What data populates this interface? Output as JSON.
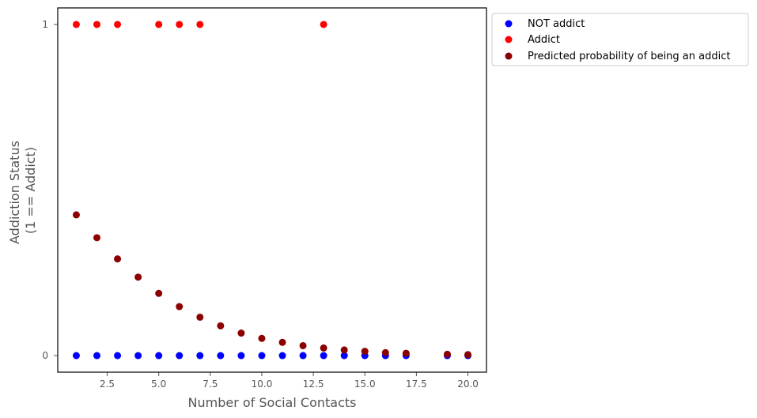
{
  "chart_data": {
    "type": "scatter",
    "xlabel": "Number of Social Contacts",
    "ylabel_lines": [
      "Addiction Status",
      "(1 == Addict)"
    ],
    "xlim": [
      0.1,
      20.9
    ],
    "ylim": [
      -0.05,
      1.05
    ],
    "x_ticks": [
      2.5,
      5.0,
      7.5,
      10.0,
      12.5,
      15.0,
      17.5,
      20.0
    ],
    "x_tick_labels": [
      "2.5",
      "5.0",
      "7.5",
      "10.0",
      "12.5",
      "15.0",
      "17.5",
      "20.0"
    ],
    "y_ticks": [
      0,
      1
    ],
    "y_tick_labels": [
      "0",
      "1"
    ],
    "grid": false,
    "legend_position": "outside-top-right",
    "series": [
      {
        "name": "NOT addict",
        "color": "#0000ff",
        "points": [
          [
            1,
            0
          ],
          [
            2,
            0
          ],
          [
            3,
            0
          ],
          [
            4,
            0
          ],
          [
            5,
            0
          ],
          [
            6,
            0
          ],
          [
            7,
            0
          ],
          [
            8,
            0
          ],
          [
            9,
            0
          ],
          [
            10,
            0
          ],
          [
            11,
            0
          ],
          [
            12,
            0
          ],
          [
            13,
            0
          ],
          [
            14,
            0
          ],
          [
            15,
            0
          ],
          [
            16,
            0
          ],
          [
            17,
            0
          ],
          [
            19,
            0
          ],
          [
            20,
            0
          ]
        ]
      },
      {
        "name": "Addict",
        "color": "#ff0000",
        "points": [
          [
            1,
            1
          ],
          [
            2,
            1
          ],
          [
            3,
            1
          ],
          [
            5,
            1
          ],
          [
            6,
            1
          ],
          [
            7,
            1
          ],
          [
            13,
            1
          ]
        ]
      },
      {
        "name": "Predicted probability of being an addict",
        "color": "#8b0000",
        "points": [
          [
            1,
            0.425
          ],
          [
            2,
            0.356
          ],
          [
            3,
            0.292
          ],
          [
            4,
            0.237
          ],
          [
            5,
            0.188
          ],
          [
            6,
            0.148
          ],
          [
            7,
            0.116
          ],
          [
            8,
            0.09
          ],
          [
            9,
            0.068
          ],
          [
            10,
            0.052
          ],
          [
            11,
            0.04
          ],
          [
            12,
            0.03
          ],
          [
            13,
            0.023
          ],
          [
            14,
            0.017
          ],
          [
            15,
            0.013
          ],
          [
            16,
            0.009
          ],
          [
            17,
            0.007
          ],
          [
            19,
            0.004
          ],
          [
            20,
            0.003
          ]
        ]
      }
    ]
  }
}
